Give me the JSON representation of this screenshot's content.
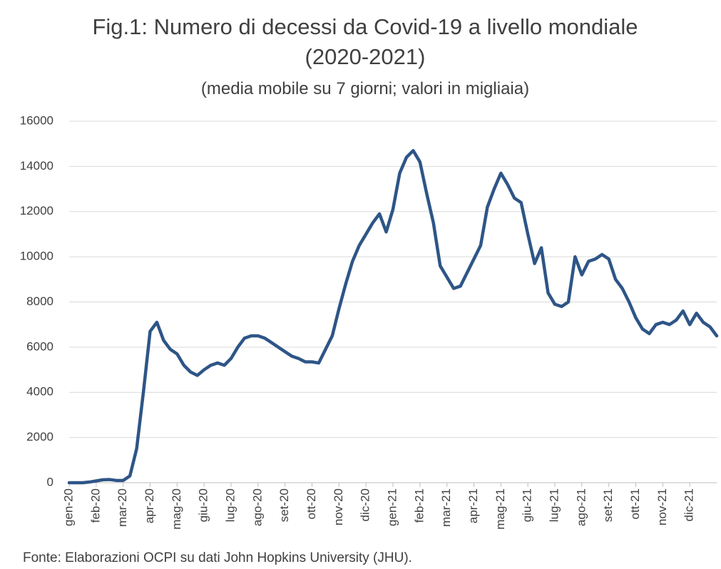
{
  "chart_data": {
    "type": "line",
    "title": [
      "Fig.1: Numero di decessi da Covid-19 a livello mondiale",
      "(2020-2021)"
    ],
    "subtitle": "(media mobile su 7 giorni; valori in migliaia)",
    "source": "Fonte: Elaborazioni OCPI su dati John Hopkins University (JHU).",
    "categories": [
      "gen-20",
      null,
      null,
      null,
      "feb-20",
      null,
      null,
      null,
      "mar-20",
      null,
      null,
      null,
      "apr-20",
      null,
      null,
      null,
      "mag-20",
      null,
      null,
      null,
      "giu-20",
      null,
      null,
      null,
      "lug-20",
      null,
      null,
      null,
      "ago-20",
      null,
      null,
      null,
      "set-20",
      null,
      null,
      null,
      "ott-20",
      null,
      null,
      null,
      "nov-20",
      null,
      null,
      null,
      "dic-20",
      null,
      null,
      null,
      "gen-21",
      null,
      null,
      null,
      "feb-21",
      null,
      null,
      null,
      "mar-21",
      null,
      null,
      null,
      "apr-21",
      null,
      null,
      null,
      "mag-21",
      null,
      null,
      null,
      "giu-21",
      null,
      null,
      null,
      "lug-21",
      null,
      null,
      null,
      "ago-21",
      null,
      null,
      null,
      "set-21",
      null,
      null,
      null,
      "ott-21",
      null,
      null,
      null,
      "nov-21",
      null,
      null,
      null,
      "dic-21",
      null,
      null,
      null,
      null
    ],
    "series": [
      {
        "name": "Decessi",
        "color": "#2e5587",
        "values": [
          0,
          0,
          0,
          30,
          80,
          130,
          140,
          100,
          100,
          300,
          1500,
          4000,
          6700,
          7100,
          6300,
          5900,
          5700,
          5200,
          4900,
          4750,
          5000,
          5200,
          5300,
          5200,
          5500,
          6000,
          6400,
          6500,
          6500,
          6400,
          6200,
          6000,
          5800,
          5600,
          5500,
          5350,
          5350,
          5300,
          5900,
          6500,
          7700,
          8800,
          9800,
          10500,
          11000,
          11500,
          11900,
          11100,
          12100,
          13700,
          14400,
          14700,
          14200,
          12800,
          11500,
          9600,
          9100,
          8600,
          8700,
          9300,
          9900,
          10500,
          12200,
          13000,
          13700,
          13200,
          12600,
          12400,
          11000,
          9700,
          10400,
          8400,
          7900,
          7800,
          8000,
          10000,
          9200,
          9800,
          9900,
          10100,
          9900,
          9000,
          8600,
          8000,
          7300,
          6800,
          6600,
          7000,
          7100,
          7000,
          7200,
          7600,
          7000,
          7500,
          7100,
          6900,
          6500
        ]
      }
    ],
    "ylim": [
      0,
      16000
    ],
    "yticks": [
      0,
      2000,
      4000,
      6000,
      8000,
      10000,
      12000,
      14000,
      16000
    ],
    "grid": true
  }
}
